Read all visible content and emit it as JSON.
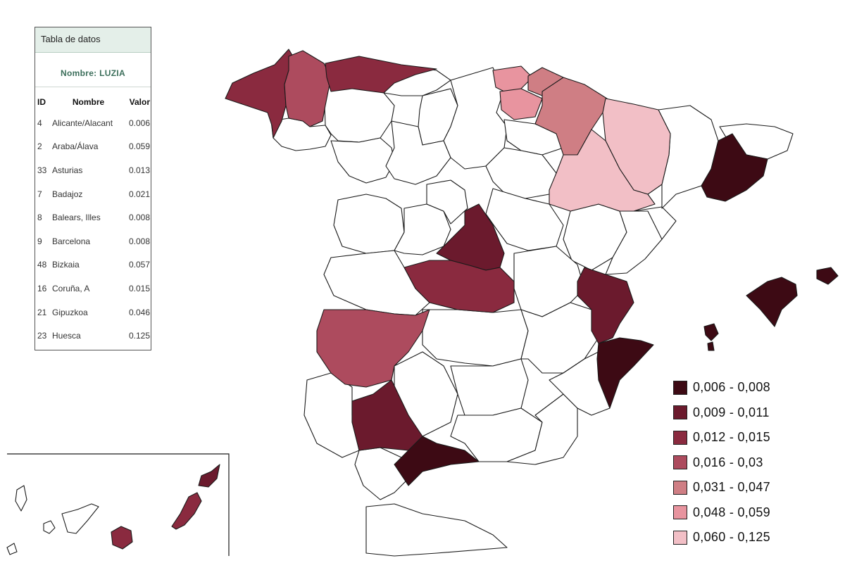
{
  "table": {
    "title": "Tabla de datos",
    "subtitle": "Nombre: LUZIA",
    "columns": [
      "ID",
      "Nombre",
      "Valor"
    ],
    "rows": [
      {
        "id": "4",
        "name": "Alicante/Alacant",
        "value": "0.006"
      },
      {
        "id": "2",
        "name": "Araba/Álava",
        "value": "0.059"
      },
      {
        "id": "33",
        "name": "Asturias",
        "value": "0.013"
      },
      {
        "id": "7",
        "name": "Badajoz",
        "value": "0.021"
      },
      {
        "id": "8",
        "name": "Balears, Illes",
        "value": "0.008"
      },
      {
        "id": "9",
        "name": "Barcelona",
        "value": "0.008"
      },
      {
        "id": "48",
        "name": "Bizkaia",
        "value": "0.057"
      },
      {
        "id": "16",
        "name": "Coruña, A",
        "value": "0.015"
      },
      {
        "id": "21",
        "name": "Gipuzkoa",
        "value": "0.046"
      },
      {
        "id": "23",
        "name": "Huesca",
        "value": "0.125"
      }
    ]
  },
  "legend": [
    {
      "label": "0,006 - 0,008",
      "color": "#3d0a14"
    },
    {
      "label": "0,009 - 0,011",
      "color": "#6b1a2d"
    },
    {
      "label": "0,012 - 0,015",
      "color": "#8a2a3f"
    },
    {
      "label": "0,016 - 0,03",
      "color": "#ad4b5e"
    },
    {
      "label": "0,031 - 0,047",
      "color": "#cf7e84"
    },
    {
      "label": "0,048 - 0,059",
      "color": "#e8949f"
    },
    {
      "label": "0,060 - 0,125",
      "color": "#f2bfc6"
    }
  ],
  "region_classes": {
    "coruna": 2,
    "lugo": 3,
    "asturias": 2,
    "bizkaia": 5,
    "gipuzkoa": 4,
    "araba": 5,
    "navarra": 4,
    "huesca": 6,
    "zaragoza": 6,
    "barcelona": 0,
    "madrid": 1,
    "toledo": 2,
    "valencia": 1,
    "alicante": 0,
    "badajoz": 3,
    "sevilla": 1,
    "malaga": 0,
    "baleares": 0,
    "lanzarote": 1,
    "fuerteventura": 2,
    "grancanaria": 2
  }
}
